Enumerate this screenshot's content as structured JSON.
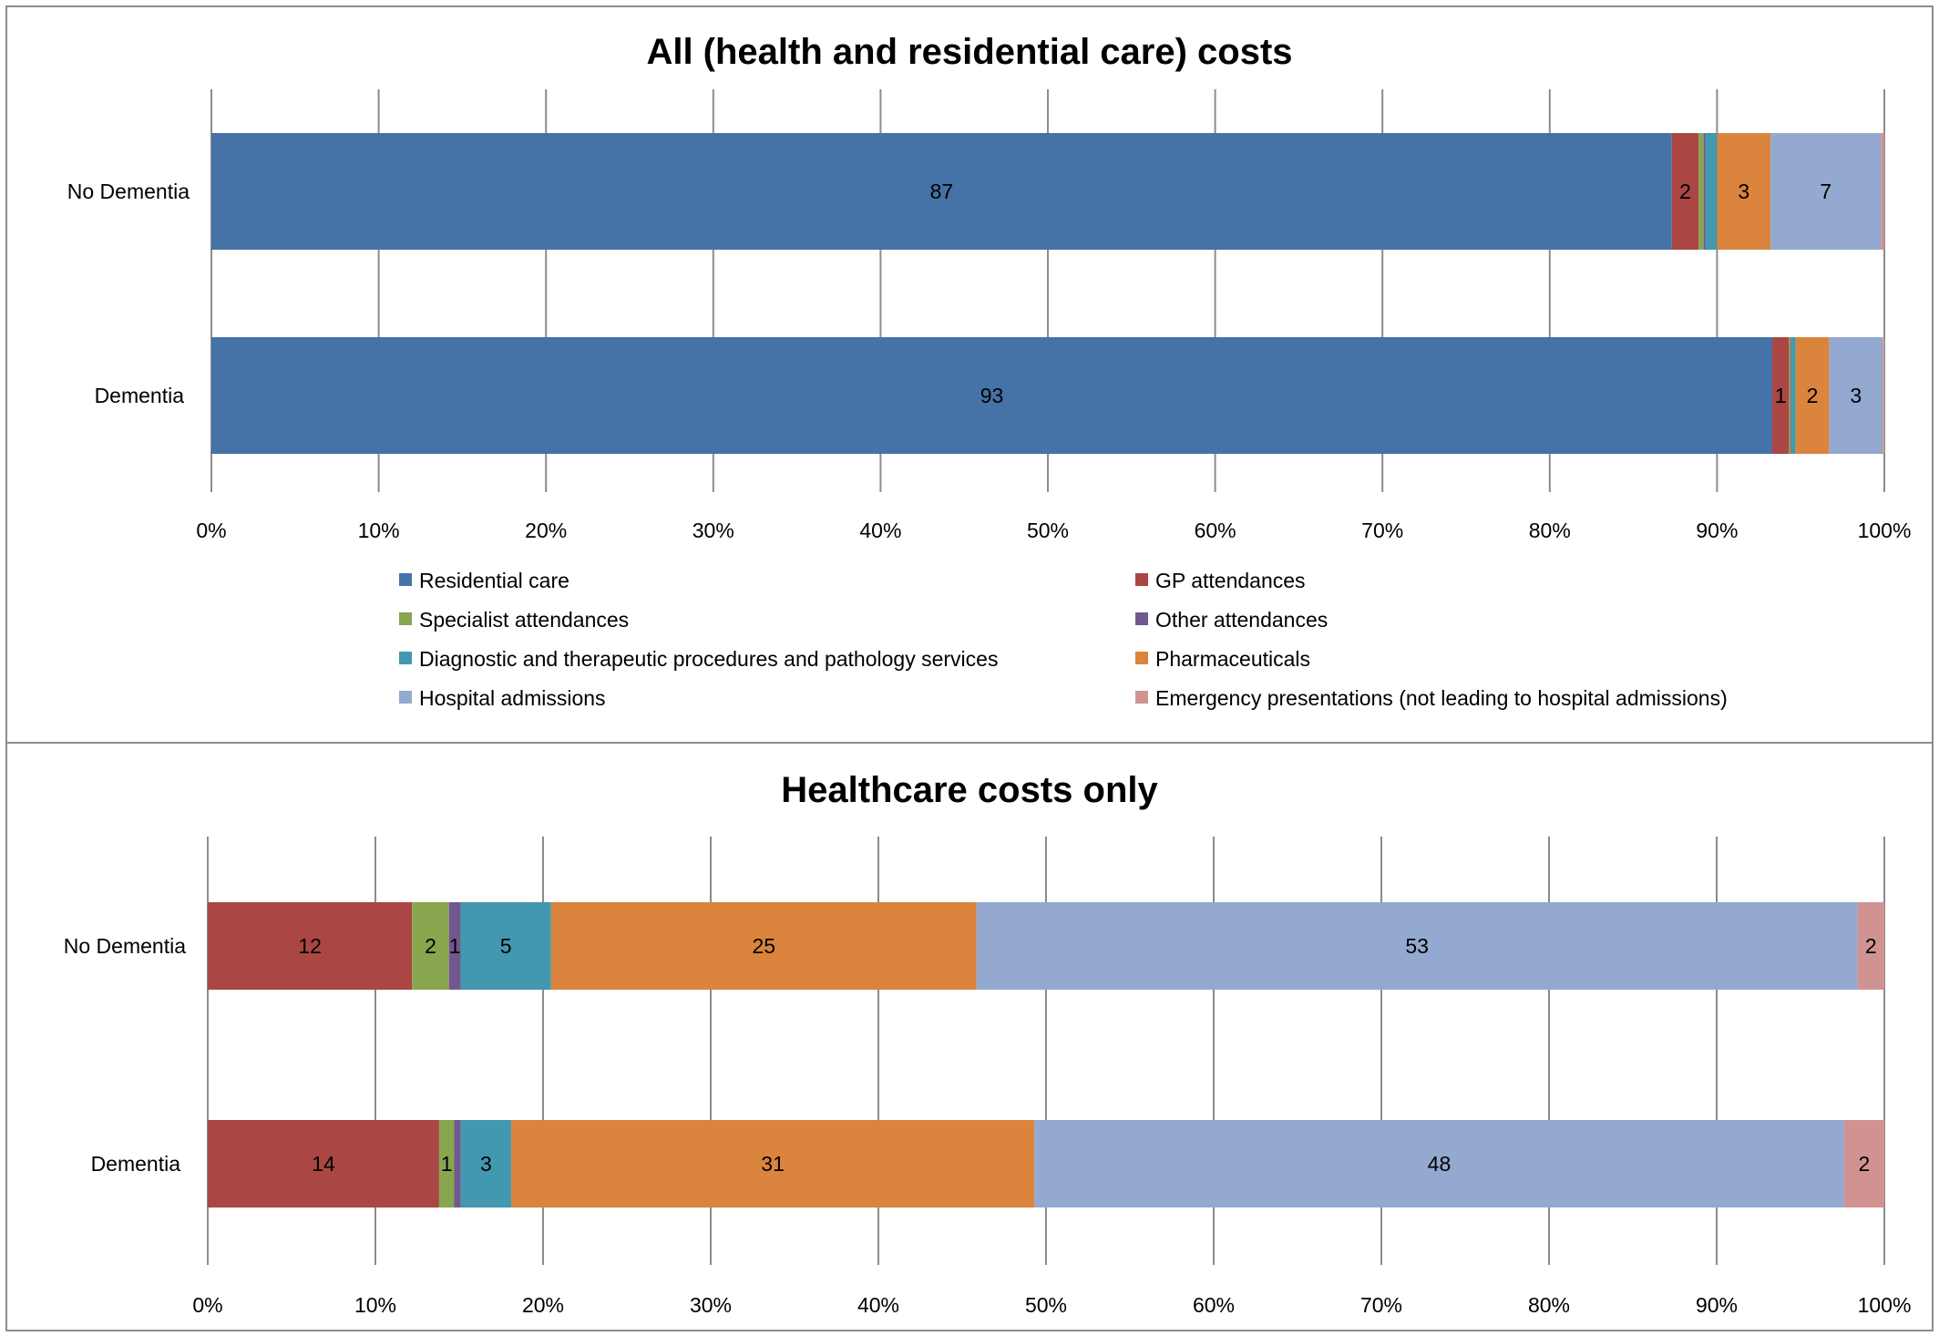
{
  "legend": [
    {
      "name": "Residential care",
      "color": "#4572A7"
    },
    {
      "name": "GP attendances",
      "color": "#AA4643"
    },
    {
      "name": "Specialist attendances",
      "color": "#89A54E"
    },
    {
      "name": "Other attendances",
      "color": "#71588F"
    },
    {
      "name": "Diagnostic and therapeutic procedures and pathology services",
      "color": "#4198AF"
    },
    {
      "name": "Pharmaceuticals",
      "color": "#DB843D"
    },
    {
      "name": "Hospital admissions",
      "color": "#93A9CF"
    },
    {
      "name": "Emergency presentations (not leading to hospital admissions)",
      "color": "#D19392"
    }
  ],
  "chart_data": [
    {
      "type": "bar",
      "orientation": "horizontal",
      "stacked": "percent",
      "title": "All (health and residential care) costs",
      "categories": [
        "No Dementia",
        "Dementia"
      ],
      "x_ticks": [
        "0%",
        "10%",
        "20%",
        "30%",
        "40%",
        "50%",
        "60%",
        "70%",
        "80%",
        "90%",
        "100%"
      ],
      "xlim": [
        0,
        100
      ],
      "grid": "vertical",
      "legend_position": "bottom",
      "series": [
        {
          "name": "Residential care",
          "values": [
            87.3,
            93.3
          ],
          "labels": [
            "87",
            "93"
          ]
        },
        {
          "name": "GP attendances",
          "values": [
            1.6,
            1.0
          ],
          "labels": [
            "2",
            "1"
          ]
        },
        {
          "name": "Specialist attendances",
          "values": [
            0.3,
            0.1
          ],
          "labels": [
            "",
            ""
          ]
        },
        {
          "name": "Other attendances",
          "values": [
            0.1,
            0.05
          ],
          "labels": [
            "",
            ""
          ]
        },
        {
          "name": "Diagnostic and therapeutic procedures and pathology services",
          "values": [
            0.7,
            0.25
          ],
          "labels": [
            "",
            ""
          ]
        },
        {
          "name": "Pharmaceuticals",
          "values": [
            3.2,
            2.0
          ],
          "labels": [
            "3",
            "2"
          ]
        },
        {
          "name": "Hospital admissions",
          "values": [
            6.6,
            3.2
          ],
          "labels": [
            "7",
            "3"
          ]
        },
        {
          "name": "Emergency presentations (not leading to hospital admissions)",
          "values": [
            0.2,
            0.1
          ],
          "labels": [
            "",
            ""
          ]
        }
      ]
    },
    {
      "type": "bar",
      "orientation": "horizontal",
      "stacked": "percent",
      "title": "Healthcare costs only",
      "categories": [
        "No Dementia",
        "Dementia"
      ],
      "x_ticks": [
        "0%",
        "10%",
        "20%",
        "30%",
        "40%",
        "50%",
        "60%",
        "70%",
        "80%",
        "90%",
        "100%"
      ],
      "xlim": [
        0,
        100
      ],
      "grid": "vertical",
      "series": [
        {
          "name": "GP attendances",
          "values": [
            12.2,
            13.8
          ],
          "labels": [
            "12",
            "14"
          ]
        },
        {
          "name": "Specialist attendances",
          "values": [
            2.2,
            0.9
          ],
          "labels": [
            "2",
            "1"
          ]
        },
        {
          "name": "Other attendances",
          "values": [
            0.7,
            0.4
          ],
          "labels": [
            "1",
            ""
          ]
        },
        {
          "name": "Diagnostic and therapeutic procedures and pathology services",
          "values": [
            5.4,
            3.0
          ],
          "labels": [
            "5",
            "3"
          ]
        },
        {
          "name": "Pharmaceuticals",
          "values": [
            25.4,
            31.2
          ],
          "labels": [
            "25",
            "31"
          ]
        },
        {
          "name": "Hospital admissions",
          "values": [
            52.6,
            48.3
          ],
          "labels": [
            "53",
            "48"
          ]
        },
        {
          "name": "Emergency presentations (not leading to hospital admissions)",
          "values": [
            1.6,
            2.4
          ],
          "labels": [
            "2",
            "2"
          ]
        }
      ]
    }
  ]
}
